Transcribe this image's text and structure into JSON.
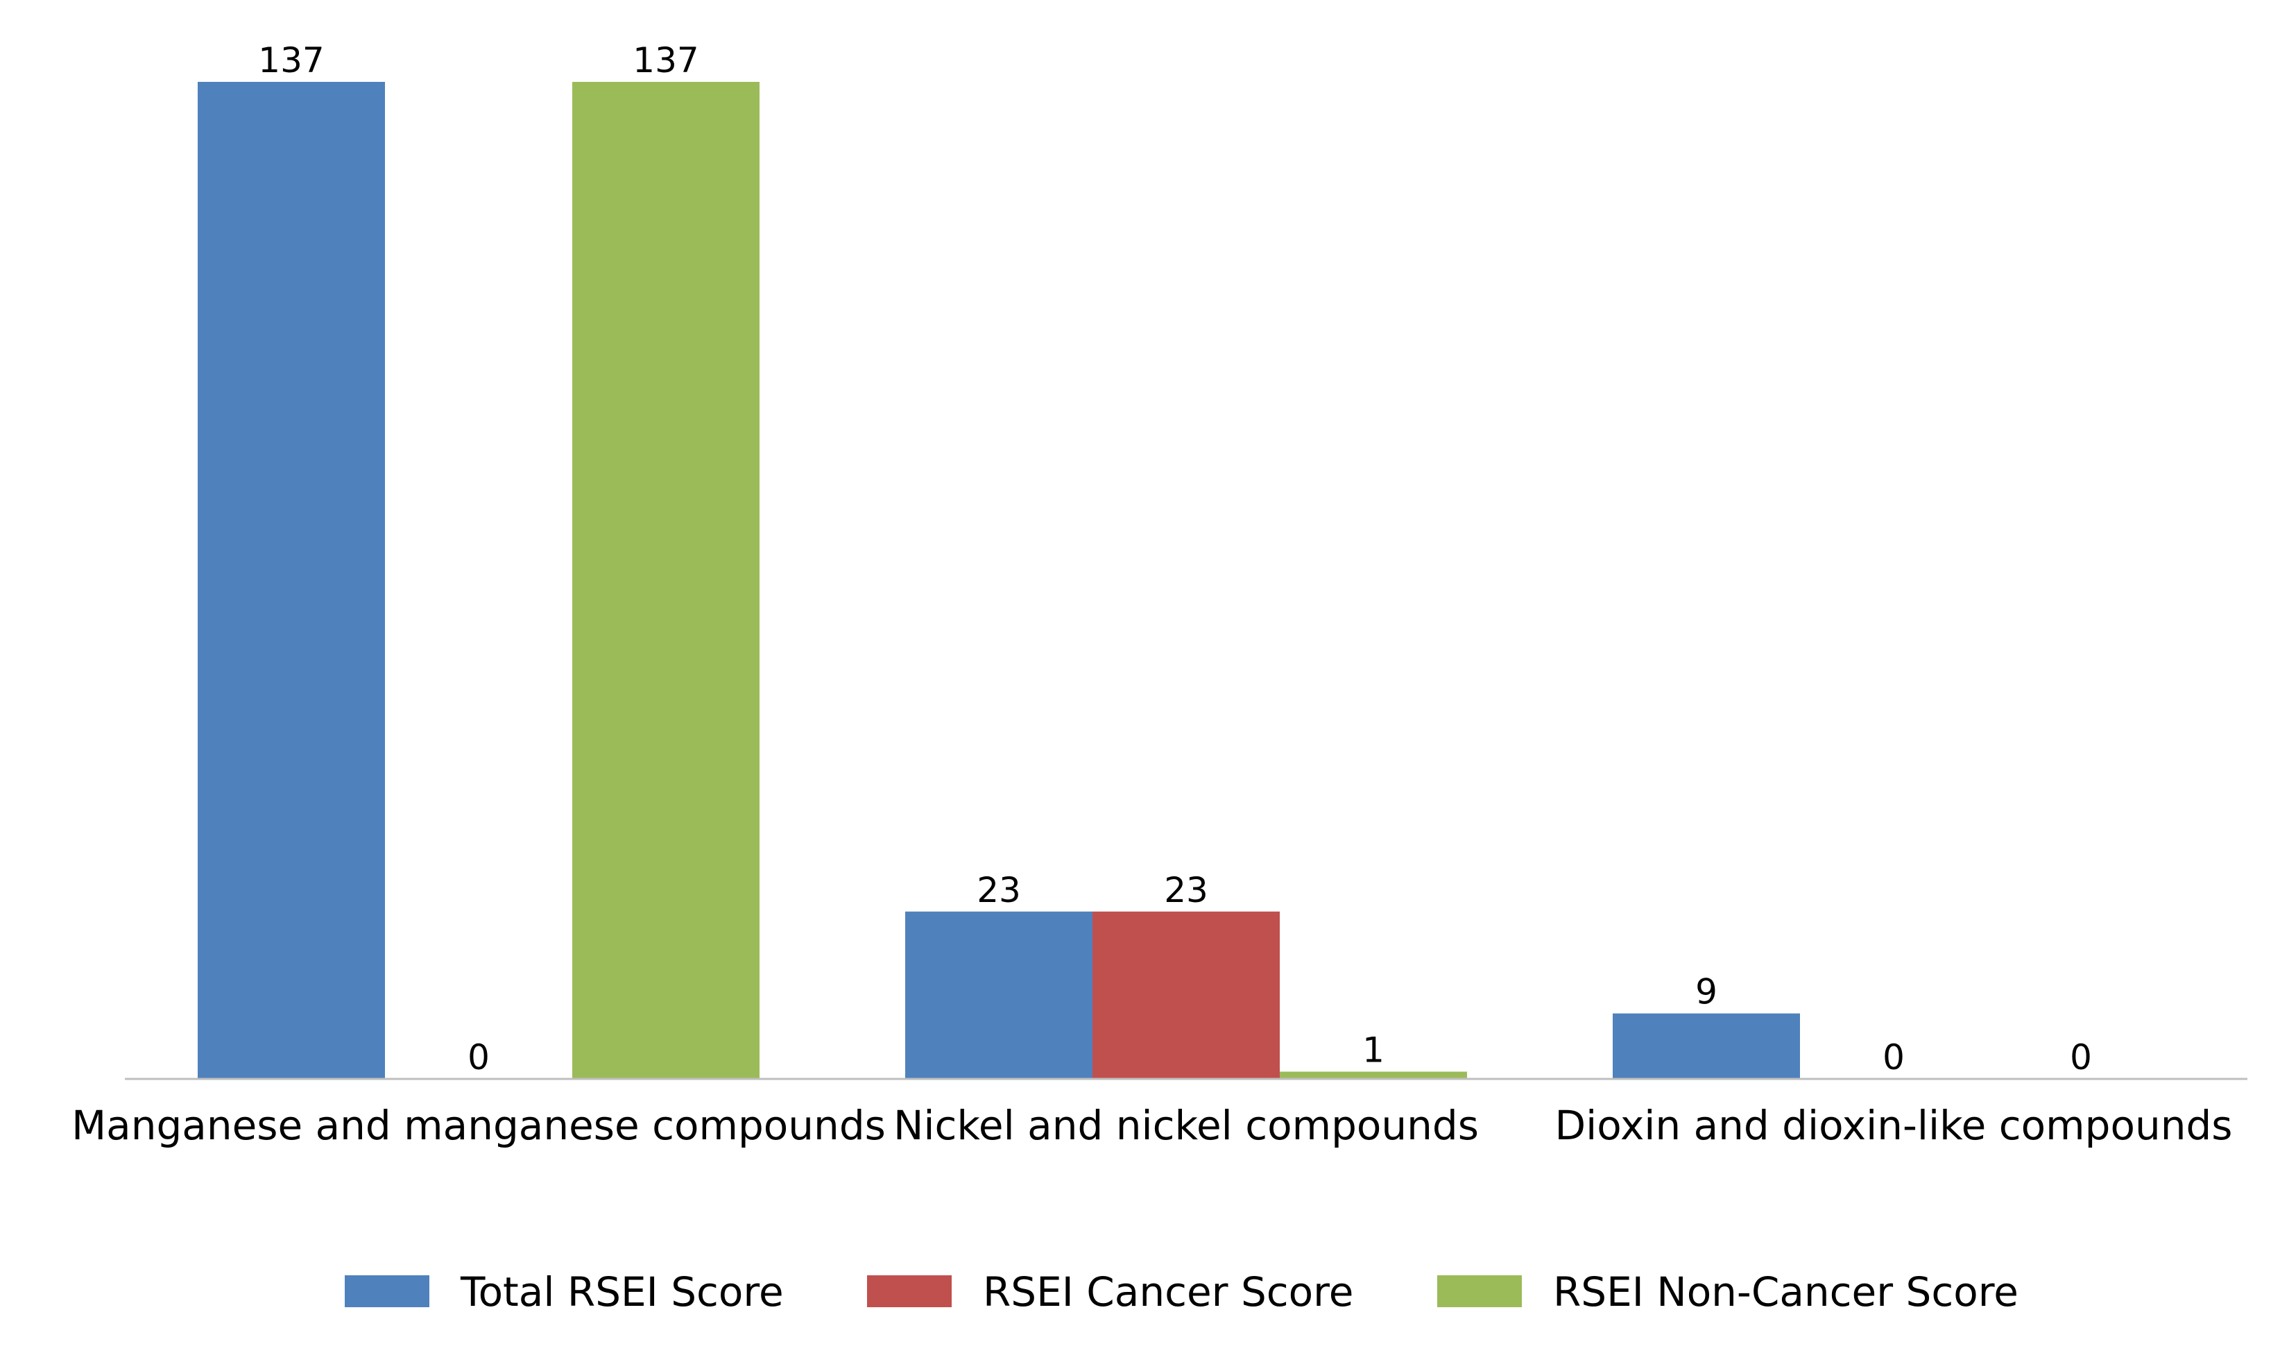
{
  "chart_data": {
    "type": "bar",
    "title": "",
    "xlabel": "",
    "ylabel": "",
    "ylim": [
      0,
      145
    ],
    "grid": false,
    "legend_position": "bottom",
    "categories": [
      "Manganese and manganese compounds",
      "Nickel and nickel compounds",
      "Dioxin and dioxin-like compounds"
    ],
    "series": [
      {
        "name": "Total RSEI Score",
        "color": "#4F81BD",
        "values": [
          137,
          23,
          9
        ]
      },
      {
        "name": "RSEI Cancer Score",
        "color": "#C0504D",
        "values": [
          0,
          23,
          0
        ]
      },
      {
        "name": "RSEI Non-Cancer Score",
        "color": "#9BBB59",
        "values": [
          137,
          1,
          0
        ]
      }
    ]
  }
}
